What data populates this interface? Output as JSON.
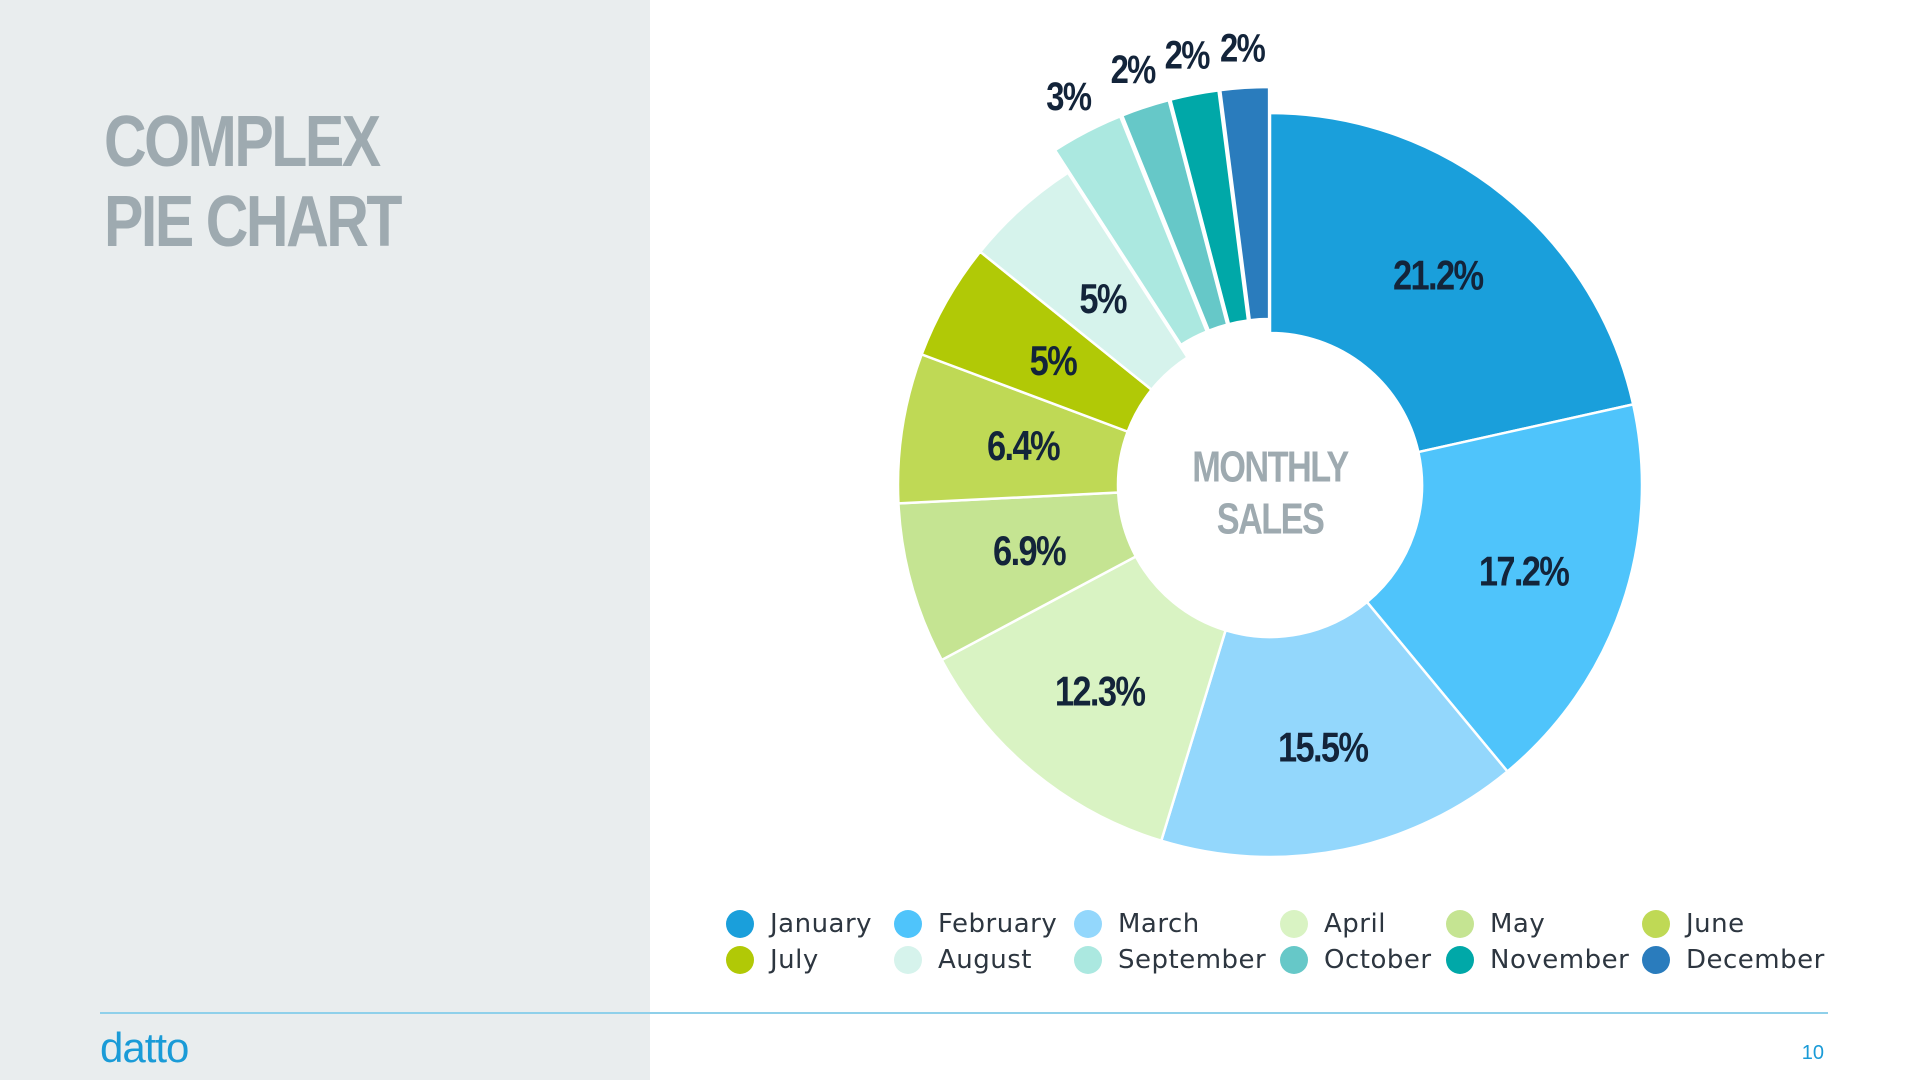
{
  "slide": {
    "title_lines": [
      "COMPLEX",
      "PIE CHART"
    ],
    "logo": "datto",
    "page_number": "10"
  },
  "colors": {
    "left_panel": "#e9edee",
    "title": "#9eaab0",
    "center_label": "#9eaab0",
    "value_label": "#13243a",
    "brand": "#1a9bd7"
  },
  "chart_data": {
    "type": "pie",
    "donut": true,
    "center_label": [
      "MONTHLY",
      "SALES"
    ],
    "legend_position": "bottom",
    "categories": [
      "January",
      "February",
      "March",
      "April",
      "May",
      "June",
      "July",
      "August",
      "September",
      "October",
      "November",
      "December"
    ],
    "values": [
      21.2,
      17.2,
      15.5,
      12.3,
      6.9,
      6.4,
      5,
      5,
      3,
      2,
      2,
      2
    ],
    "labels": [
      "21.2%",
      "17.2%",
      "15.5%",
      "12.3%",
      "6.9%",
      "6.4%",
      "5%",
      "5%",
      "3%",
      "2%",
      "2%",
      "2%"
    ],
    "exploded": [
      false,
      false,
      false,
      false,
      false,
      false,
      false,
      false,
      true,
      true,
      true,
      true
    ],
    "slice_colors": [
      "#1a9fdb",
      "#4fc4fb",
      "#93d7fc",
      "#d9f3c3",
      "#c5e492",
      "#bfd955",
      "#b1c906",
      "#d6f3ec",
      "#abe8e0",
      "#66c8c8",
      "#00a8a8",
      "#2a7cbd"
    ]
  }
}
